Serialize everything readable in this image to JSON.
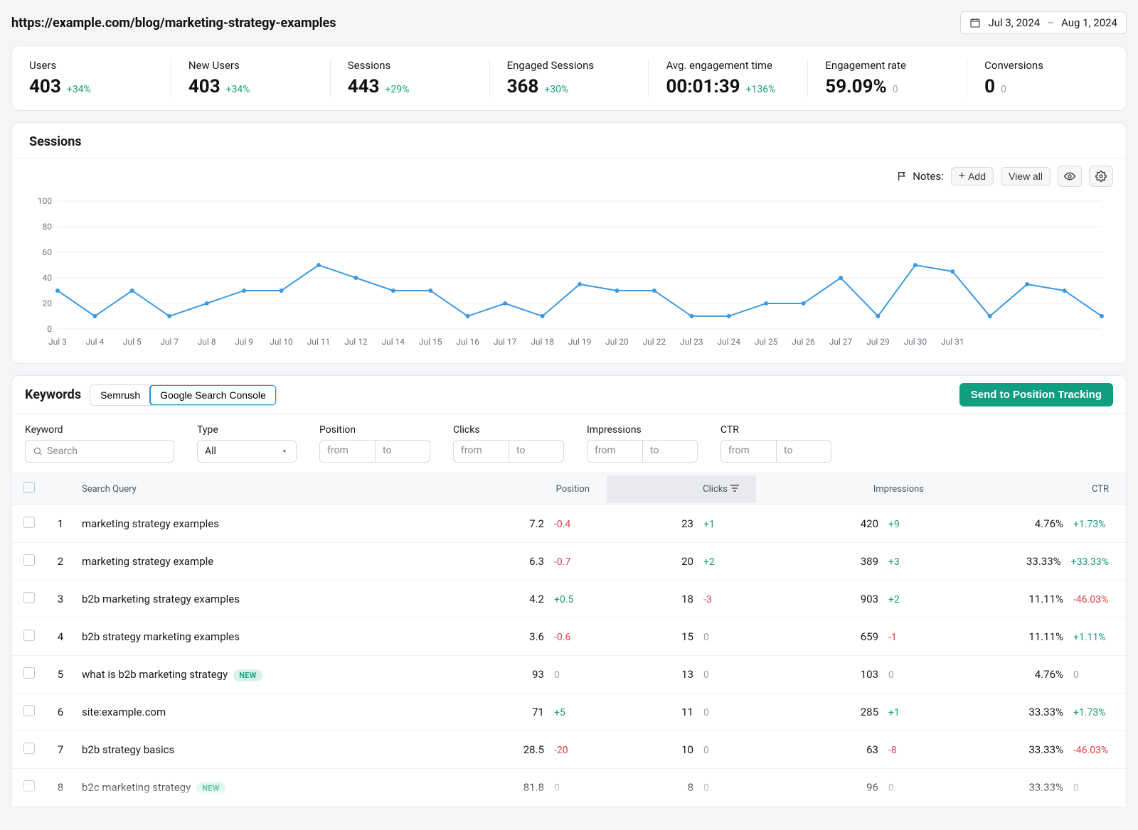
{
  "page_url": "https://example.com/blog/marketing-strategy-examples",
  "date_range": {
    "from": "Jul 3, 2024",
    "sep": "–",
    "to": "Aug 1, 2024"
  },
  "metrics": [
    {
      "label": "Users",
      "value": "403",
      "delta": "+34%",
      "delta_class": "up"
    },
    {
      "label": "New Users",
      "value": "403",
      "delta": "+34%",
      "delta_class": "up"
    },
    {
      "label": "Sessions",
      "value": "443",
      "delta": "+29%",
      "delta_class": "up"
    },
    {
      "label": "Engaged Sessions",
      "value": "368",
      "delta": "+30%",
      "delta_class": "up"
    },
    {
      "label": "Avg. engagement time",
      "value": "00:01:39",
      "delta": "+136%",
      "delta_class": "up"
    },
    {
      "label": "Engagement rate",
      "value": "59.09%",
      "delta": "0",
      "delta_class": "neutral"
    },
    {
      "label": "Conversions",
      "value": "0",
      "delta": "0",
      "delta_class": "neutral"
    }
  ],
  "sessions_chart": {
    "title": "Sessions",
    "notes_label": "Notes:",
    "buttons": {
      "add": "Add",
      "view_all": "View all"
    },
    "type": "line",
    "y": {
      "min": 0,
      "max": 100,
      "ticks": [
        0,
        20,
        40,
        60,
        80,
        100
      ]
    },
    "line_color": "#3b9ae1",
    "dot_color": "#3b9ae1",
    "grid_color": "#eceef1",
    "axis_text_color": "#6b7280",
    "background": "#ffffff",
    "points": [
      {
        "label": "Jul 3",
        "v": 30
      },
      {
        "label": "Jul 4",
        "v": 10
      },
      {
        "label": "Jul 5",
        "v": 30
      },
      {
        "label": "Jul 7",
        "v": 10
      },
      {
        "label": "Jul 8",
        "v": 20
      },
      {
        "label": "Jul 9",
        "v": 30
      },
      {
        "label": "Jul 10",
        "v": 30
      },
      {
        "label": "Jul 11",
        "v": 50
      },
      {
        "label": "Jul 12",
        "v": 40
      },
      {
        "label": "Jul 14",
        "v": 30
      },
      {
        "label": "Jul 15",
        "v": 30
      },
      {
        "label": "Jul 16",
        "v": 10
      },
      {
        "label": "Jul 17",
        "v": 20
      },
      {
        "label": "Jul 18",
        "v": 10
      },
      {
        "label": "Jul 19",
        "v": 35
      },
      {
        "label": "Jul 20",
        "v": 30
      },
      {
        "label": "Jul 22",
        "v": 30
      },
      {
        "label": "Jul 23",
        "v": 10
      },
      {
        "label": "Jul 24",
        "v": 10
      },
      {
        "label": "Jul 25",
        "v": 20
      },
      {
        "label": "Jul 26",
        "v": 20
      },
      {
        "label": "Jul 27",
        "v": 40
      },
      {
        "label": "Jul 29",
        "v": 10
      },
      {
        "label": "Jul 30",
        "v": 50
      },
      {
        "label": "Jul 31",
        "v": 45
      },
      {
        "label": "",
        "v": 10
      },
      {
        "label": "",
        "v": 35
      },
      {
        "label": "",
        "v": 30
      },
      {
        "label": "",
        "v": 10
      }
    ]
  },
  "keywords": {
    "title": "Keywords",
    "tabs": [
      {
        "key": "semrush",
        "label": "Semrush",
        "active": false
      },
      {
        "key": "gsc",
        "label": "Google Search Console",
        "active": true
      }
    ],
    "cta": "Send to Position Tracking",
    "filters": {
      "keyword_label": "Keyword",
      "search_placeholder": "Search",
      "type_label": "Type",
      "type_value": "All",
      "position_label": "Position",
      "clicks_label": "Clicks",
      "impressions_label": "Impressions",
      "ctr_label": "CTR",
      "from_ph": "from",
      "to_ph": "to"
    },
    "columns": {
      "query": "Search Query",
      "position": "Position",
      "clicks": "Clicks",
      "impressions": "Impressions",
      "ctr": "CTR",
      "sorted": "clicks"
    },
    "badge_new": "NEW",
    "rows": [
      {
        "i": 1,
        "query": "marketing strategy examples",
        "new": false,
        "position": "7.2",
        "position_d": "-0.4",
        "position_dc": "down",
        "clicks": "23",
        "clicks_d": "+1",
        "clicks_dc": "up",
        "impr": "420",
        "impr_d": "+9",
        "impr_dc": "up",
        "ctr": "4.76%",
        "ctr_d": "+1.73%",
        "ctr_dc": "up"
      },
      {
        "i": 2,
        "query": "marketing strategy example",
        "new": false,
        "position": "6.3",
        "position_d": "-0.7",
        "position_dc": "down",
        "clicks": "20",
        "clicks_d": "+2",
        "clicks_dc": "up",
        "impr": "389",
        "impr_d": "+3",
        "impr_dc": "up",
        "ctr": "33.33%",
        "ctr_d": "+33.33%",
        "ctr_dc": "up"
      },
      {
        "i": 3,
        "query": "b2b marketing strategy examples",
        "new": false,
        "position": "4.2",
        "position_d": "+0.5",
        "position_dc": "up",
        "clicks": "18",
        "clicks_d": "-3",
        "clicks_dc": "down",
        "impr": "903",
        "impr_d": "+2",
        "impr_dc": "up",
        "ctr": "11.11%",
        "ctr_d": "-46.03%",
        "ctr_dc": "down"
      },
      {
        "i": 4,
        "query": "b2b strategy marketing examples",
        "new": false,
        "position": "3.6",
        "position_d": "-0.6",
        "position_dc": "down",
        "clicks": "15",
        "clicks_d": "0",
        "clicks_dc": "neutral",
        "impr": "659",
        "impr_d": "-1",
        "impr_dc": "down",
        "ctr": "11.11%",
        "ctr_d": "+1.11%",
        "ctr_dc": "up"
      },
      {
        "i": 5,
        "query": "what is b2b marketing strategy",
        "new": true,
        "position": "93",
        "position_d": "0",
        "position_dc": "neutral",
        "clicks": "13",
        "clicks_d": "0",
        "clicks_dc": "neutral",
        "impr": "103",
        "impr_d": "0",
        "impr_dc": "neutral",
        "ctr": "4.76%",
        "ctr_d": "0",
        "ctr_dc": "neutral"
      },
      {
        "i": 6,
        "query": "site:example.com",
        "new": false,
        "position": "71",
        "position_d": "+5",
        "position_dc": "up",
        "clicks": "11",
        "clicks_d": "0",
        "clicks_dc": "neutral",
        "impr": "285",
        "impr_d": "+1",
        "impr_dc": "up",
        "ctr": "33.33%",
        "ctr_d": "+1.73%",
        "ctr_dc": "up"
      },
      {
        "i": 7,
        "query": "b2b strategy basics",
        "new": false,
        "position": "28.5",
        "position_d": "-20",
        "position_dc": "down",
        "clicks": "10",
        "clicks_d": "0",
        "clicks_dc": "neutral",
        "impr": "63",
        "impr_d": "-8",
        "impr_dc": "down",
        "ctr": "33.33%",
        "ctr_d": "-46.03%",
        "ctr_dc": "down"
      },
      {
        "i": 8,
        "query": "b2c marketing strategy",
        "new": true,
        "position": "81.8",
        "position_d": "0",
        "position_dc": "neutral",
        "clicks": "8",
        "clicks_d": "0",
        "clicks_dc": "neutral",
        "impr": "96",
        "impr_d": "0",
        "impr_dc": "neutral",
        "ctr": "33.33%",
        "ctr_d": "0",
        "ctr_dc": "neutral"
      }
    ]
  }
}
